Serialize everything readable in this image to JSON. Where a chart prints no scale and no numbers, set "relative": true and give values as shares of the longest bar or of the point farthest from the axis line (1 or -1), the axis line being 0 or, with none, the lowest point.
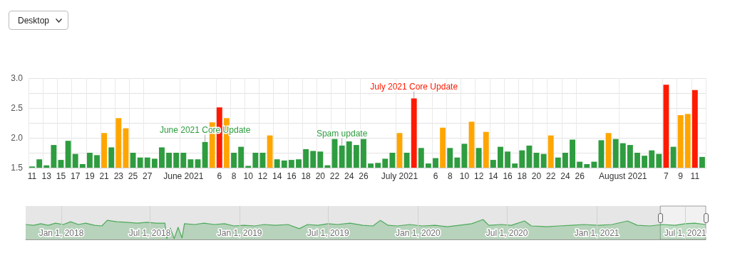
{
  "chart_data": [
    {
      "type": "bar",
      "categories": [
        "11",
        null,
        "13",
        null,
        "15",
        null,
        "17",
        null,
        "19",
        null,
        "21",
        null,
        "23",
        null,
        "25",
        null,
        "27",
        null,
        null,
        null,
        null,
        "June 2021",
        null,
        null,
        null,
        null,
        "6",
        null,
        "8",
        null,
        "10",
        null,
        "12",
        null,
        "14",
        null,
        "16",
        null,
        "18",
        null,
        "20",
        null,
        "22",
        null,
        "24",
        null,
        "26",
        null,
        null,
        null,
        null,
        "July 2021",
        null,
        null,
        null,
        null,
        "6",
        null,
        "8",
        null,
        "10",
        null,
        "12",
        null,
        "14",
        null,
        "16",
        null,
        "18",
        null,
        "20",
        null,
        "22",
        null,
        "24",
        null,
        "26",
        null,
        null,
        null,
        null,
        null,
        "August 2021",
        null,
        null,
        null,
        null,
        null,
        "7",
        null,
        "9",
        null,
        "11",
        null
      ],
      "values": [
        1.52,
        1.64,
        1.54,
        1.88,
        1.63,
        1.95,
        1.73,
        1.56,
        1.75,
        1.71,
        2.08,
        1.84,
        2.33,
        2.16,
        1.75,
        1.67,
        1.67,
        1.65,
        1.84,
        1.75,
        1.75,
        1.75,
        1.64,
        1.64,
        1.93,
        2.26,
        2.51,
        2.33,
        1.75,
        1.85,
        1.53,
        1.75,
        1.75,
        2.04,
        1.64,
        1.62,
        1.63,
        1.64,
        1.81,
        1.78,
        1.77,
        1.54,
        1.98,
        1.87,
        1.94,
        1.88,
        1.98,
        1.57,
        1.58,
        1.65,
        1.75,
        2.08,
        1.75,
        2.66,
        1.83,
        1.57,
        1.66,
        2.17,
        1.83,
        1.67,
        1.9,
        2.27,
        1.83,
        2.1,
        1.63,
        1.85,
        1.77,
        1.57,
        1.79,
        1.87,
        1.75,
        1.73,
        2.04,
        1.67,
        1.75,
        1.97,
        1.6,
        1.56,
        1.6,
        1.96,
        2.08,
        1.98,
        1.91,
        1.88,
        1.75,
        1.7,
        1.79,
        1.73,
        2.89,
        1.85,
        2.38,
        2.4,
        2.8,
        1.68
      ],
      "colors": [
        "#2e9c3f",
        "#2e9c3f",
        "#2e9c3f",
        "#2e9c3f",
        "#2e9c3f",
        "#2e9c3f",
        "#2e9c3f",
        "#2e9c3f",
        "#2e9c3f",
        "#2e9c3f",
        "#ffa500",
        "#2e9c3f",
        "#ffa500",
        "#ffa500",
        "#2e9c3f",
        "#2e9c3f",
        "#2e9c3f",
        "#2e9c3f",
        "#2e9c3f",
        "#2e9c3f",
        "#2e9c3f",
        "#2e9c3f",
        "#2e9c3f",
        "#2e9c3f",
        "#2e9c3f",
        "#ffa500",
        "#ff1a00",
        "#ffa500",
        "#2e9c3f",
        "#2e9c3f",
        "#2e9c3f",
        "#2e9c3f",
        "#2e9c3f",
        "#ffa500",
        "#2e9c3f",
        "#2e9c3f",
        "#2e9c3f",
        "#2e9c3f",
        "#2e9c3f",
        "#2e9c3f",
        "#2e9c3f",
        "#2e9c3f",
        "#2e9c3f",
        "#2e9c3f",
        "#2e9c3f",
        "#2e9c3f",
        "#2e9c3f",
        "#2e9c3f",
        "#2e9c3f",
        "#2e9c3f",
        "#2e9c3f",
        "#ffa500",
        "#2e9c3f",
        "#ff1a00",
        "#2e9c3f",
        "#2e9c3f",
        "#2e9c3f",
        "#ffa500",
        "#2e9c3f",
        "#2e9c3f",
        "#2e9c3f",
        "#ffa500",
        "#2e9c3f",
        "#ffa500",
        "#2e9c3f",
        "#2e9c3f",
        "#2e9c3f",
        "#2e9c3f",
        "#2e9c3f",
        "#2e9c3f",
        "#2e9c3f",
        "#2e9c3f",
        "#ffa500",
        "#2e9c3f",
        "#2e9c3f",
        "#2e9c3f",
        "#2e9c3f",
        "#2e9c3f",
        "#2e9c3f",
        "#2e9c3f",
        "#ffa500",
        "#2e9c3f",
        "#2e9c3f",
        "#2e9c3f",
        "#2e9c3f",
        "#2e9c3f",
        "#2e9c3f",
        "#2e9c3f",
        "#ff1a00",
        "#2e9c3f",
        "#ffa500",
        "#ffa500",
        "#ff1a00",
        "#2e9c3f"
      ],
      "ylim": [
        1.5,
        3.0
      ],
      "yticks": [
        1.5,
        {
          "value": 1.75,
          "label": null
        },
        {
          "value": 2,
          "label": "2.0"
        },
        {
          "value": 2.25,
          "label": null
        },
        2.5,
        {
          "value": 2.75,
          "label": null
        },
        {
          "value": 3,
          "label": "3.0"
        }
      ],
      "grid": true,
      "annotations": [
        "Desktop",
        {
          "text": "June 2021 Core Update",
          "y": 1.93
        },
        {
          "text": "Spam update",
          "y": 1.87
        },
        {
          "text": "July 2021 Core Update",
          "y": 2.66
        }
      ]
    },
    {
      "type": "area",
      "relative": true,
      "color": "#4caa5a",
      "tick_labels": "x",
      "grid": "x",
      "xlim": [
        "2017-10-20",
        "2021-08-12"
      ],
      "xticks": [
        {
          "value": "2018-01-01",
          "label": "Jan 1, 2018"
        },
        {
          "value": "2018-07-01",
          "label": "Jul 1, 2018"
        },
        {
          "value": "2019-01-01",
          "label": "Jan 1, 2019"
        },
        {
          "value": "2019-07-01",
          "label": "Jul 1, 2019"
        },
        {
          "value": "2020-01-01",
          "label": "Jan 1, 2020"
        },
        {
          "value": "2020-07-01",
          "label": "Jul 1, 2020"
        },
        {
          "value": "2021-01-01",
          "label": "Jan 1, 2021"
        },
        {
          "value": "2021-07-01",
          "label": "Jul 1, 2021"
        }
      ],
      "x": [
        "2017-10-20",
        "2017-11-05",
        "2017-11-20",
        "2017-12-05",
        "2017-12-20",
        "2018-01-05",
        "2018-01-20",
        "2018-02-05",
        "2018-02-20",
        "2018-03-10",
        "2018-03-25",
        "2018-04-05",
        "2018-04-25",
        "2018-05-15",
        "2018-06-05",
        "2018-06-25",
        "2018-07-15",
        "2018-08-01",
        "2018-08-05",
        "2018-08-12",
        "2018-08-20",
        "2018-08-28",
        "2018-09-05",
        "2018-09-10",
        "2018-10-01",
        "2018-10-20",
        "2018-11-10",
        "2018-12-01",
        "2018-12-20",
        "2019-01-10",
        "2019-02-01",
        "2019-02-20",
        "2019-03-15",
        "2019-04-10",
        "2019-05-03",
        "2019-05-20",
        "2019-06-10",
        "2019-07-01",
        "2019-07-20",
        "2019-08-15",
        "2019-09-10",
        "2019-10-01",
        "2019-10-16",
        "2019-11-01",
        "2019-11-20",
        "2019-12-15",
        "2020-01-10",
        "2020-02-05",
        "2020-03-01",
        "2020-03-25",
        "2020-04-20",
        "2020-05-13",
        "2020-05-25",
        "2020-06-20",
        "2020-07-10",
        "2020-08-06",
        "2020-08-20",
        "2020-09-20",
        "2020-10-15",
        "2020-11-10",
        "2020-12-05",
        "2021-01-05",
        "2021-02-01",
        "2021-03-05",
        "2021-03-25",
        "2021-04-20",
        "2021-05-15",
        "2021-06-10",
        "2021-07-01",
        "2021-07-20",
        "2021-08-12"
      ],
      "values": [
        0.75,
        0.71,
        0.79,
        0.71,
        0.82,
        0.75,
        0.89,
        0.75,
        0.82,
        0.71,
        0.68,
        0.96,
        0.89,
        0.86,
        0.82,
        0.86,
        0.82,
        0.82,
        0.04,
        0.57,
        0.04,
        0.61,
        0.07,
        0.79,
        0.75,
        0.82,
        0.75,
        0.79,
        0.68,
        0.71,
        0.68,
        0.75,
        0.71,
        0.75,
        0.54,
        0.75,
        0.71,
        0.79,
        0.75,
        0.82,
        0.71,
        0.68,
        0.96,
        0.71,
        0.68,
        0.75,
        0.68,
        0.71,
        0.64,
        0.71,
        0.79,
        1,
        0.71,
        0.75,
        0.71,
        0.93,
        0.68,
        0.64,
        0.68,
        0.71,
        0.75,
        0.71,
        0.75,
        0.93,
        0.71,
        0.68,
        0.75,
        0.71,
        0.79,
        0.82,
        0.75
      ],
      "bands": [
        {
          "axis": "x",
          "from": "2021-05-11",
          "to": "2021-08-12",
          "color": "#ffffff"
        }
      ]
    }
  ]
}
